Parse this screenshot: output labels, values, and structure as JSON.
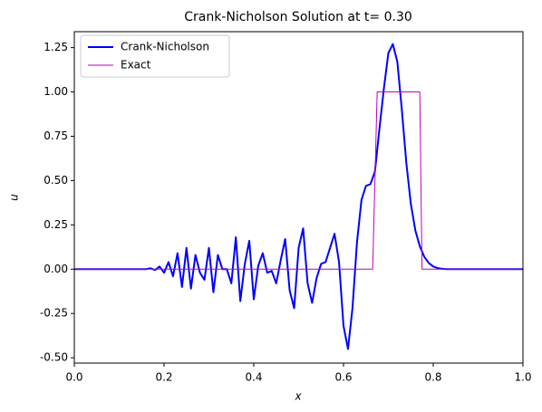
{
  "chart_data": {
    "type": "line",
    "title": "Crank-Nicholson Solution at t= 0.30",
    "xlabel": "x",
    "ylabel": "u",
    "xlim": [
      0,
      1
    ],
    "ylim": [
      -0.53,
      1.34
    ],
    "xticks": [
      {
        "value": 0,
        "label": "0.0"
      },
      {
        "value": 0.2,
        "label": "0.2"
      },
      {
        "value": 0.4,
        "label": "0.4"
      },
      {
        "value": 0.6,
        "label": "0.6"
      },
      {
        "value": 0.8,
        "label": "0.8"
      },
      {
        "value": 1,
        "label": "1.0"
      }
    ],
    "yticks": [
      {
        "value": -0.5,
        "label": "-0.50"
      },
      -0.25,
      {
        "value": 0,
        "label": "0.00"
      },
      0.25,
      {
        "value": 0.5,
        "label": "0.50"
      },
      0.75,
      {
        "value": 1,
        "label": "1.00"
      },
      1.25
    ],
    "grid": false,
    "legend": "upper left",
    "series": [
      {
        "name": "Crank-Nicholson",
        "color": "#0000ff",
        "width": 2,
        "x": [
          0,
          0.01,
          0.02,
          0.03,
          0.04,
          0.05,
          0.06,
          0.07,
          0.08,
          0.09,
          0.1,
          0.11,
          0.12,
          0.13,
          0.14,
          0.15,
          0.16,
          0.17,
          0.18,
          0.19,
          0.2,
          0.21,
          0.22,
          0.23,
          0.24,
          0.25,
          0.26,
          0.27,
          0.28,
          0.29,
          0.3,
          0.31,
          0.32,
          0.33,
          0.34,
          0.35,
          0.36,
          0.37,
          0.38,
          0.39,
          0.4,
          0.41,
          0.42,
          0.43,
          0.44,
          0.45,
          0.46,
          0.47,
          0.48,
          0.49,
          0.5,
          0.51,
          0.52,
          0.53,
          0.54,
          0.55,
          0.56,
          0.57,
          0.58,
          0.59,
          0.6,
          0.61,
          0.62,
          0.63,
          0.64,
          0.65,
          0.66,
          0.67,
          0.68,
          0.69,
          0.7,
          0.71,
          0.72,
          0.73,
          0.74,
          0.75,
          0.76,
          0.77,
          0.78,
          0.79,
          0.8,
          0.81,
          0.82,
          0.83,
          0.84,
          0.85,
          0.86,
          0.87,
          0.88,
          0.89,
          0.9,
          0.91,
          0.92,
          0.93,
          0.94,
          0.95,
          0.96,
          0.97,
          0.98,
          0.99,
          1
        ],
        "values": [
          0,
          0,
          0,
          0,
          0,
          0,
          0,
          0,
          0,
          0,
          0,
          0,
          0,
          0,
          0,
          0,
          0,
          0.005,
          -0.005,
          0.015,
          -0.02,
          0.04,
          -0.04,
          0.09,
          -0.1,
          0.12,
          -0.11,
          0.08,
          -0.02,
          -0.06,
          0.12,
          -0.13,
          0.08,
          0,
          0,
          -0.08,
          0.18,
          -0.18,
          0.03,
          0.16,
          -0.17,
          0.02,
          0.09,
          -0.02,
          -0.01,
          -0.08,
          0.05,
          0.17,
          -0.12,
          -0.22,
          0.12,
          0.23,
          -0.08,
          -0.19,
          -0.05,
          0.03,
          0.04,
          0.12,
          0.2,
          0.04,
          -0.32,
          -0.45,
          -0.22,
          0.15,
          0.39,
          0.47,
          0.48,
          0.55,
          0.79,
          1.02,
          1.22,
          1.27,
          1.17,
          0.9,
          0.6,
          0.37,
          0.22,
          0.13,
          0.07,
          0.035,
          0.015,
          0.006,
          0.002,
          0,
          0,
          0,
          0,
          0,
          0,
          0,
          0,
          0,
          0,
          0,
          0,
          0,
          0,
          0,
          0,
          0,
          0
        ]
      },
      {
        "name": "Exact",
        "color": "#bf00bf",
        "width": 1,
        "x": [
          0,
          0.665,
          0.675,
          0.77,
          0.775,
          1
        ],
        "values": [
          0,
          0,
          1,
          1,
          0,
          0
        ]
      }
    ]
  }
}
